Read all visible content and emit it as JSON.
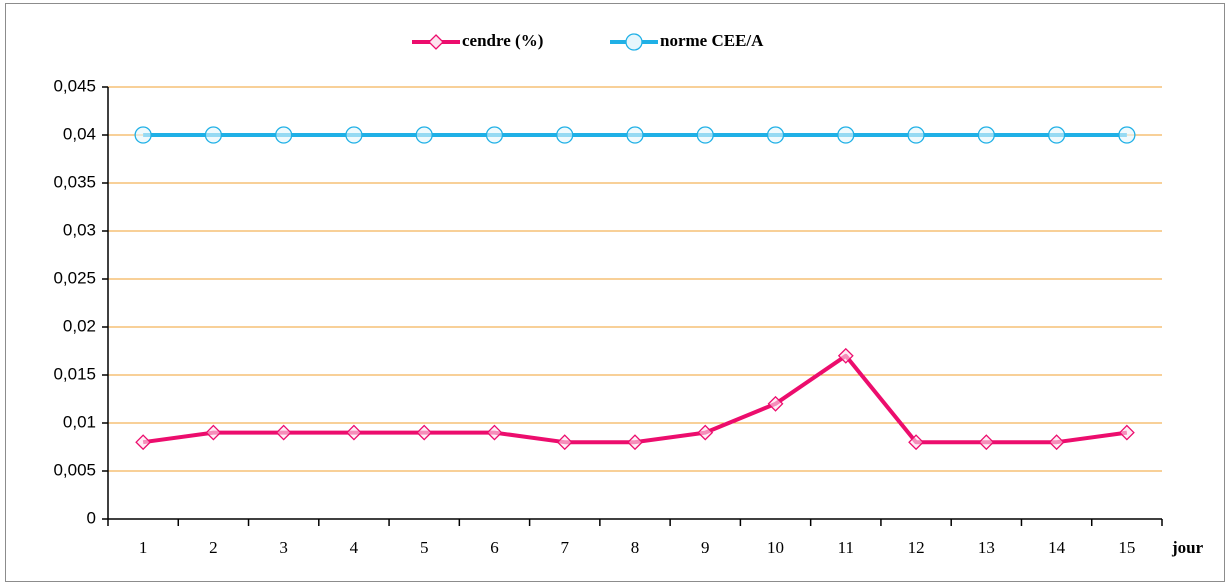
{
  "chart_data": {
    "type": "line",
    "categories": [
      "1",
      "2",
      "3",
      "4",
      "5",
      "6",
      "7",
      "8",
      "9",
      "10",
      "11",
      "12",
      "13",
      "14",
      "15"
    ],
    "x_label": "jour",
    "series": [
      {
        "name": "cendre (%)",
        "color": "#ec0d6d",
        "marker": "diamond",
        "values": [
          0.008,
          0.009,
          0.009,
          0.009,
          0.009,
          0.009,
          0.008,
          0.008,
          0.009,
          0.012,
          0.017,
          0.008,
          0.008,
          0.008,
          0.009
        ]
      },
      {
        "name": "norme CEE/A",
        "color": "#1fb0e6",
        "marker": "circle",
        "values": [
          0.04,
          0.04,
          0.04,
          0.04,
          0.04,
          0.04,
          0.04,
          0.04,
          0.04,
          0.04,
          0.04,
          0.04,
          0.04,
          0.04,
          0.04
        ]
      }
    ],
    "ylim": [
      0,
      0.045
    ],
    "yticks": [
      0,
      {
        "value": 0.005,
        "label": "0,005"
      },
      {
        "value": 0.01,
        "label": "0,01"
      },
      {
        "value": 0.015,
        "label": "0,015"
      },
      {
        "value": 0.02,
        "label": "0,02"
      },
      {
        "value": 0.025,
        "label": "0,025"
      },
      {
        "value": 0.03,
        "label": "0,03"
      },
      {
        "value": 0.035,
        "label": "0,035"
      },
      {
        "value": 0.04,
        "label": "0,04"
      },
      {
        "value": 0.045,
        "label": "0,045"
      }
    ],
    "grid": true,
    "grid_color": "#f0a030",
    "legend": "top"
  }
}
